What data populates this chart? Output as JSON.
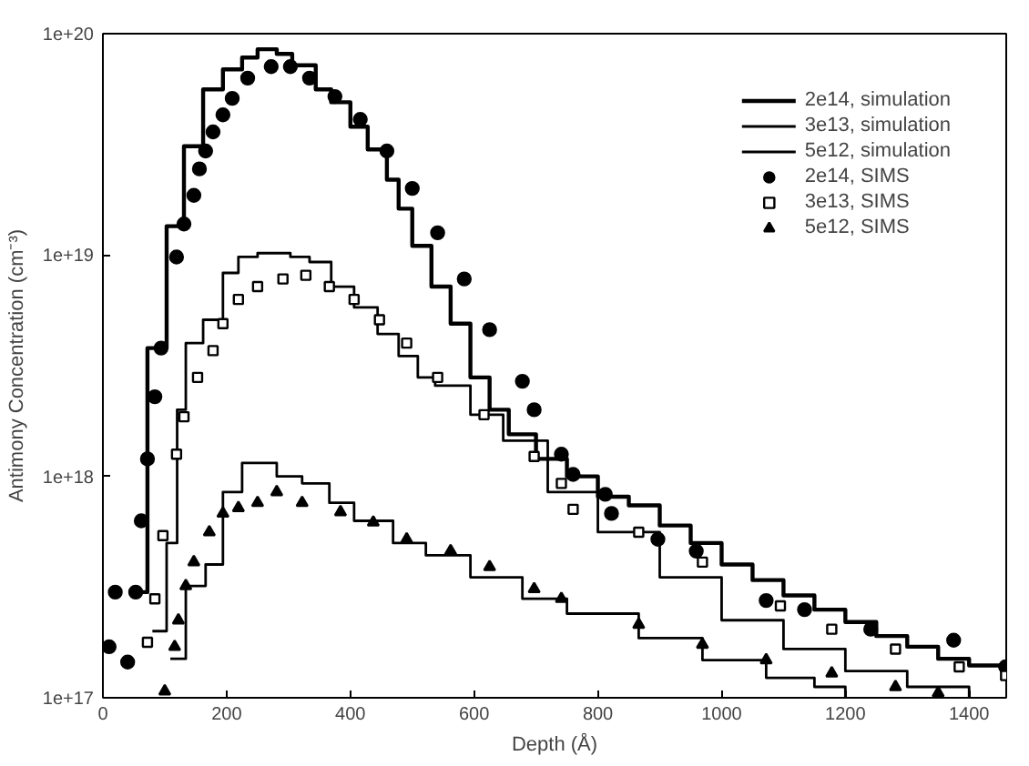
{
  "chart_data": {
    "type": "scatter",
    "xlabel": "Depth (Å)",
    "ylabel": "Antimony Concentration (cm⁻³)",
    "log": "y",
    "xlim": [
      0,
      1460
    ],
    "ylim": [
      1e+17,
      1e+20
    ],
    "xticks": [
      0,
      200,
      400,
      600,
      800,
      1000,
      1200,
      1400
    ],
    "yticks": [
      {
        "value": 1e+17,
        "label": "1e+17"
      },
      {
        "value": 1e+18,
        "label": "1e+18"
      },
      {
        "value": 1e+19,
        "label": "1e+19"
      },
      {
        "value": 1e+20,
        "label": "1e+20"
      }
    ],
    "grid": false,
    "legend": "top right",
    "series": [
      {
        "name": "2e14, simulation",
        "type": "step",
        "color": "#000000",
        "marker": "none",
        "x": [
          50,
          72,
          103,
          131,
          162,
          194,
          225,
          250,
          281,
          306,
          344,
          369,
          400,
          428,
          459,
          478,
          500,
          531,
          562,
          594,
          625,
          656,
          700,
          750,
          800,
          850,
          900,
          950,
          1000,
          1050,
          1100,
          1150,
          1200,
          1250,
          1300,
          1350,
          1400,
          1460
        ],
        "values": [
          3e+17,
          3.8e+18,
          1.35e+19,
          3.1e+19,
          5.6e+19,
          6.9e+19,
          7.8e+19,
          8.5e+19,
          8.1e+19,
          7.2e+19,
          5.6e+19,
          4.9e+19,
          3.8e+19,
          3e+19,
          2.19e+19,
          1.62e+19,
          1.1e+19,
          7.2e+18,
          4.9e+18,
          2.8e+18,
          2e+18,
          1.55e+18,
          1.2e+18,
          1e+18,
          8.1e+17,
          7.4e+17,
          6e+17,
          5e+17,
          4e+17,
          3.4e+17,
          2.9e+17,
          2.5e+17,
          2.2e+17,
          1.9e+17,
          1.7e+17,
          1.5e+17,
          1.4e+17,
          1.3e+17
        ]
      },
      {
        "name": "3e13, simulation",
        "type": "step",
        "color": "#000000",
        "marker": "none",
        "x": [
          80,
          103,
          120,
          134,
          162,
          194,
          219,
          250,
          303,
          334,
          369,
          406,
          444,
          478,
          509,
          537,
          594,
          647,
          719,
          800,
          900,
          1000,
          1100,
          1200,
          1300,
          1400
        ],
        "values": [
          2e+17,
          5e+17,
          2e+18,
          4e+18,
          5.1e+18,
          8.3e+18,
          9.8e+18,
          1.02e+19,
          9.8e+18,
          9.3e+18,
          7.2e+18,
          5.8e+18,
          4.4e+18,
          3.5e+18,
          2.8e+18,
          2.57e+18,
          1.9e+18,
          1.45e+18,
          8.5e+17,
          5.6e+17,
          3.5e+17,
          2.24e+17,
          1.66e+17,
          1.32e+17,
          1.12e+17,
          1e+17
        ]
      },
      {
        "name": "5e12, simulation",
        "type": "step",
        "color": "#000000",
        "marker": "none",
        "x": [
          109,
          134,
          166,
          194,
          225,
          281,
          322,
          366,
          406,
          469,
          522,
          594,
          678,
          750,
          866,
          969,
          1072,
          1150,
          1200
        ],
        "values": [
          1.5e+17,
          3.2e+17,
          4e+17,
          8.5e+17,
          1.15e+18,
          1e+18,
          9.3e+17,
          7.6e+17,
          6.3e+17,
          5e+17,
          4.4e+17,
          3.5e+17,
          2.8e+17,
          2.4e+17,
          1.86e+17,
          1.48e+17,
          1.23e+17,
          1.12e+17,
          1e+17
        ]
      },
      {
        "name": "2e14, SIMS",
        "color": "#000000",
        "marker": "circle",
        "x": [
          10,
          20,
          40,
          53,
          62,
          72,
          84,
          94,
          119,
          131,
          147,
          156,
          166,
          178,
          194,
          209,
          234,
          272,
          303,
          334,
          375,
          416,
          459,
          500,
          541,
          584,
          625,
          678,
          697,
          741,
          760,
          812,
          822,
          897,
          959,
          1072,
          1134,
          1241,
          1375,
          1459
        ],
        "values": [
          1.7e+17,
          3e+17,
          1.45e+17,
          3e+17,
          6.3e+17,
          1.2e+18,
          2.29e+18,
          3.8e+18,
          9.8e+18,
          1.38e+19,
          1.86e+19,
          2.45e+19,
          2.95e+19,
          3.6e+19,
          4.3e+19,
          5.1e+19,
          6.3e+19,
          7.1e+19,
          7.1e+19,
          6.3e+19,
          5.2e+19,
          4.1e+19,
          2.95e+19,
          2e+19,
          1.26e+19,
          7.8e+18,
          4.6e+18,
          2.69e+18,
          2e+18,
          1.26e+18,
          1.02e+18,
          8.3e+17,
          6.8e+17,
          5.2e+17,
          4.6e+17,
          2.75e+17,
          2.5e+17,
          2.04e+17,
          1.82e+17,
          1.38e+17
        ]
      },
      {
        "name": "3e13, SIMS",
        "color": "#000000",
        "marker": "square",
        "x": [
          72,
          84,
          97,
          119,
          131,
          153,
          178,
          194,
          219,
          250,
          291,
          328,
          366,
          406,
          447,
          491,
          541,
          616,
          697,
          741,
          760,
          866,
          969,
          1095,
          1178,
          1281,
          1384,
          1459
        ],
        "values": [
          1.78e+17,
          2.8e+17,
          5.4e+17,
          1.26e+18,
          1.86e+18,
          2.8e+18,
          3.7e+18,
          4.9e+18,
          6.3e+18,
          7.2e+18,
          7.8e+18,
          8.1e+18,
          7.2e+18,
          6.3e+18,
          5.1e+18,
          4e+18,
          2.8e+18,
          1.9e+18,
          1.23e+18,
          9.3e+17,
          7.1e+17,
          5.6e+17,
          4.1e+17,
          2.6e+17,
          2.04e+17,
          1.66e+17,
          1.38e+17,
          1.26e+17
        ]
      },
      {
        "name": "5e12, SIMS",
        "color": "#000000",
        "marker": "triangle",
        "x": [
          100,
          116,
          122,
          134,
          147,
          172,
          194,
          219,
          250,
          281,
          322,
          384,
          437,
          491,
          562,
          625,
          697,
          741,
          866,
          969,
          1072,
          1178,
          1281,
          1350
        ],
        "values": [
          1.07e+17,
          1.7e+17,
          2.24e+17,
          3.2e+17,
          4.1e+17,
          5.6e+17,
          6.8e+17,
          7.2e+17,
          7.6e+17,
          8.5e+17,
          7.6e+17,
          6.9e+17,
          6.2e+17,
          5.2e+17,
          4.6e+17,
          3.9e+17,
          3.1e+17,
          2.8e+17,
          2.14e+17,
          1.74e+17,
          1.48e+17,
          1.29e+17,
          1.12e+17,
          1.05e+17
        ]
      }
    ]
  }
}
